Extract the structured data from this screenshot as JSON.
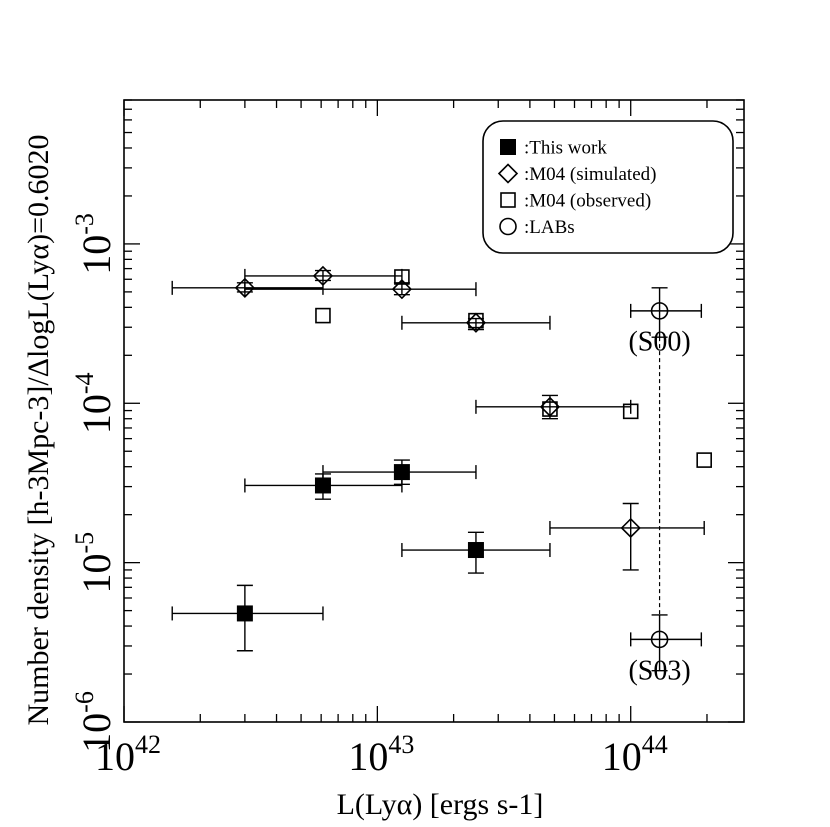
{
  "chart_data": {
    "type": "scatter",
    "xlabel": "L(Lyα) [ergs s-1]",
    "ylabel": "Number density [h-3Mpc-3]/ΔlogL(Lyα)=0.6020",
    "x_scale": "log",
    "y_scale": "log",
    "xlim": [
      1e+42,
      2.8e+44
    ],
    "ylim": [
      1e-06,
      0.008
    ],
    "x_ticks": [
      {
        "base": "10",
        "exp": "42",
        "value": 1e+42
      },
      {
        "base": "10",
        "exp": "43",
        "value": 1e+43
      },
      {
        "base": "10",
        "exp": "44",
        "value": 1e+44
      }
    ],
    "y_ticks": [
      {
        "base": "10",
        "exp": "-6",
        "value": 1e-06
      },
      {
        "base": "10",
        "exp": "-5",
        "value": 1e-05
      },
      {
        "base": "10",
        "exp": "-4",
        "value": 0.0001
      },
      {
        "base": "10",
        "exp": "-3",
        "value": 0.001
      }
    ],
    "legend_position": "top-right",
    "series": [
      {
        "name": ":This work",
        "marker": "filled-square",
        "points": [
          {
            "x": 3e+42,
            "y": 4.8e-06,
            "xerr": [
              1.55e+42,
              6.1e+42
            ],
            "yerr": [
              2.8e-06,
              7.2e-06
            ]
          },
          {
            "x": 6.1e+42,
            "y": 3.05e-05,
            "xerr": [
              3e+42,
              1.25e+43
            ],
            "yerr": [
              2.5e-05,
              3.6e-05
            ]
          },
          {
            "x": 1.25e+43,
            "y": 3.7e-05,
            "xerr": [
              6.1e+42,
              2.45e+43
            ],
            "yerr": [
              3.1e-05,
              4.4e-05
            ]
          },
          {
            "x": 2.45e+43,
            "y": 1.2e-05,
            "xerr": [
              1.25e+43,
              4.8e+43
            ],
            "yerr": [
              8.6e-06,
              1.55e-05
            ]
          }
        ]
      },
      {
        "name": ":M04 (simulated)",
        "marker": "open-diamond",
        "points": [
          {
            "x": 3e+42,
            "y": 0.00053,
            "xerr": [
              1.55e+42,
              6.1e+42
            ],
            "yerr": [
              0.0005,
              0.00057
            ]
          },
          {
            "x": 6.1e+42,
            "y": 0.00063,
            "xerr": [
              3e+42,
              1.25e+43
            ],
            "yerr": [
              0.00059,
              0.00068
            ]
          },
          {
            "x": 1.25e+43,
            "y": 0.00052,
            "xerr": [
              3e+42,
              2.45e+43
            ],
            "yerr": [
              0.00048,
              0.00057
            ]
          },
          {
            "x": 2.45e+43,
            "y": 0.00032,
            "xerr": [
              1.25e+43,
              4.8e+43
            ],
            "yerr": [
              0.00029,
              0.00034
            ]
          },
          {
            "x": 4.8e+43,
            "y": 9.5e-05,
            "xerr": [
              2.45e+43,
              1e+44
            ],
            "yerr": [
              8e-05,
              0.000112
            ]
          },
          {
            "x": 1e+44,
            "y": 1.65e-05,
            "xerr": [
              4.8e+43,
              1.95e+44
            ],
            "yerr": [
              9e-06,
              2.35e-05
            ]
          }
        ]
      },
      {
        "name": ":M04 (observed)",
        "marker": "open-square",
        "points": [
          {
            "x": 6.1e+42,
            "y": 0.000355
          },
          {
            "x": 1.25e+43,
            "y": 0.00062
          },
          {
            "x": 2.45e+43,
            "y": 0.00033
          },
          {
            "x": 4.8e+43,
            "y": 9.2e-05
          },
          {
            "x": 1e+44,
            "y": 8.9e-05
          },
          {
            "x": 1.95e+44,
            "y": 4.4e-05
          }
        ]
      },
      {
        "name": ":LABs",
        "marker": "open-circle",
        "points": [
          {
            "x": 1.3e+44,
            "y": 0.00038,
            "xerr": [
              1e+44,
              1.9e+44
            ],
            "yerr": [
              0.00026,
              0.00053
            ]
          },
          {
            "x": 1.3e+44,
            "y": 3.3e-06,
            "xerr": [
              1e+44,
              1.9e+44
            ],
            "yerr": [
              2.1e-06,
              4.7e-06
            ]
          }
        ]
      }
    ],
    "annotations": [
      {
        "text": "(S00)",
        "x": 1.3e+44,
        "y": 0.000215
      },
      {
        "text": "(S03)",
        "x": 1.3e+44,
        "y": 1.85e-06
      }
    ]
  }
}
